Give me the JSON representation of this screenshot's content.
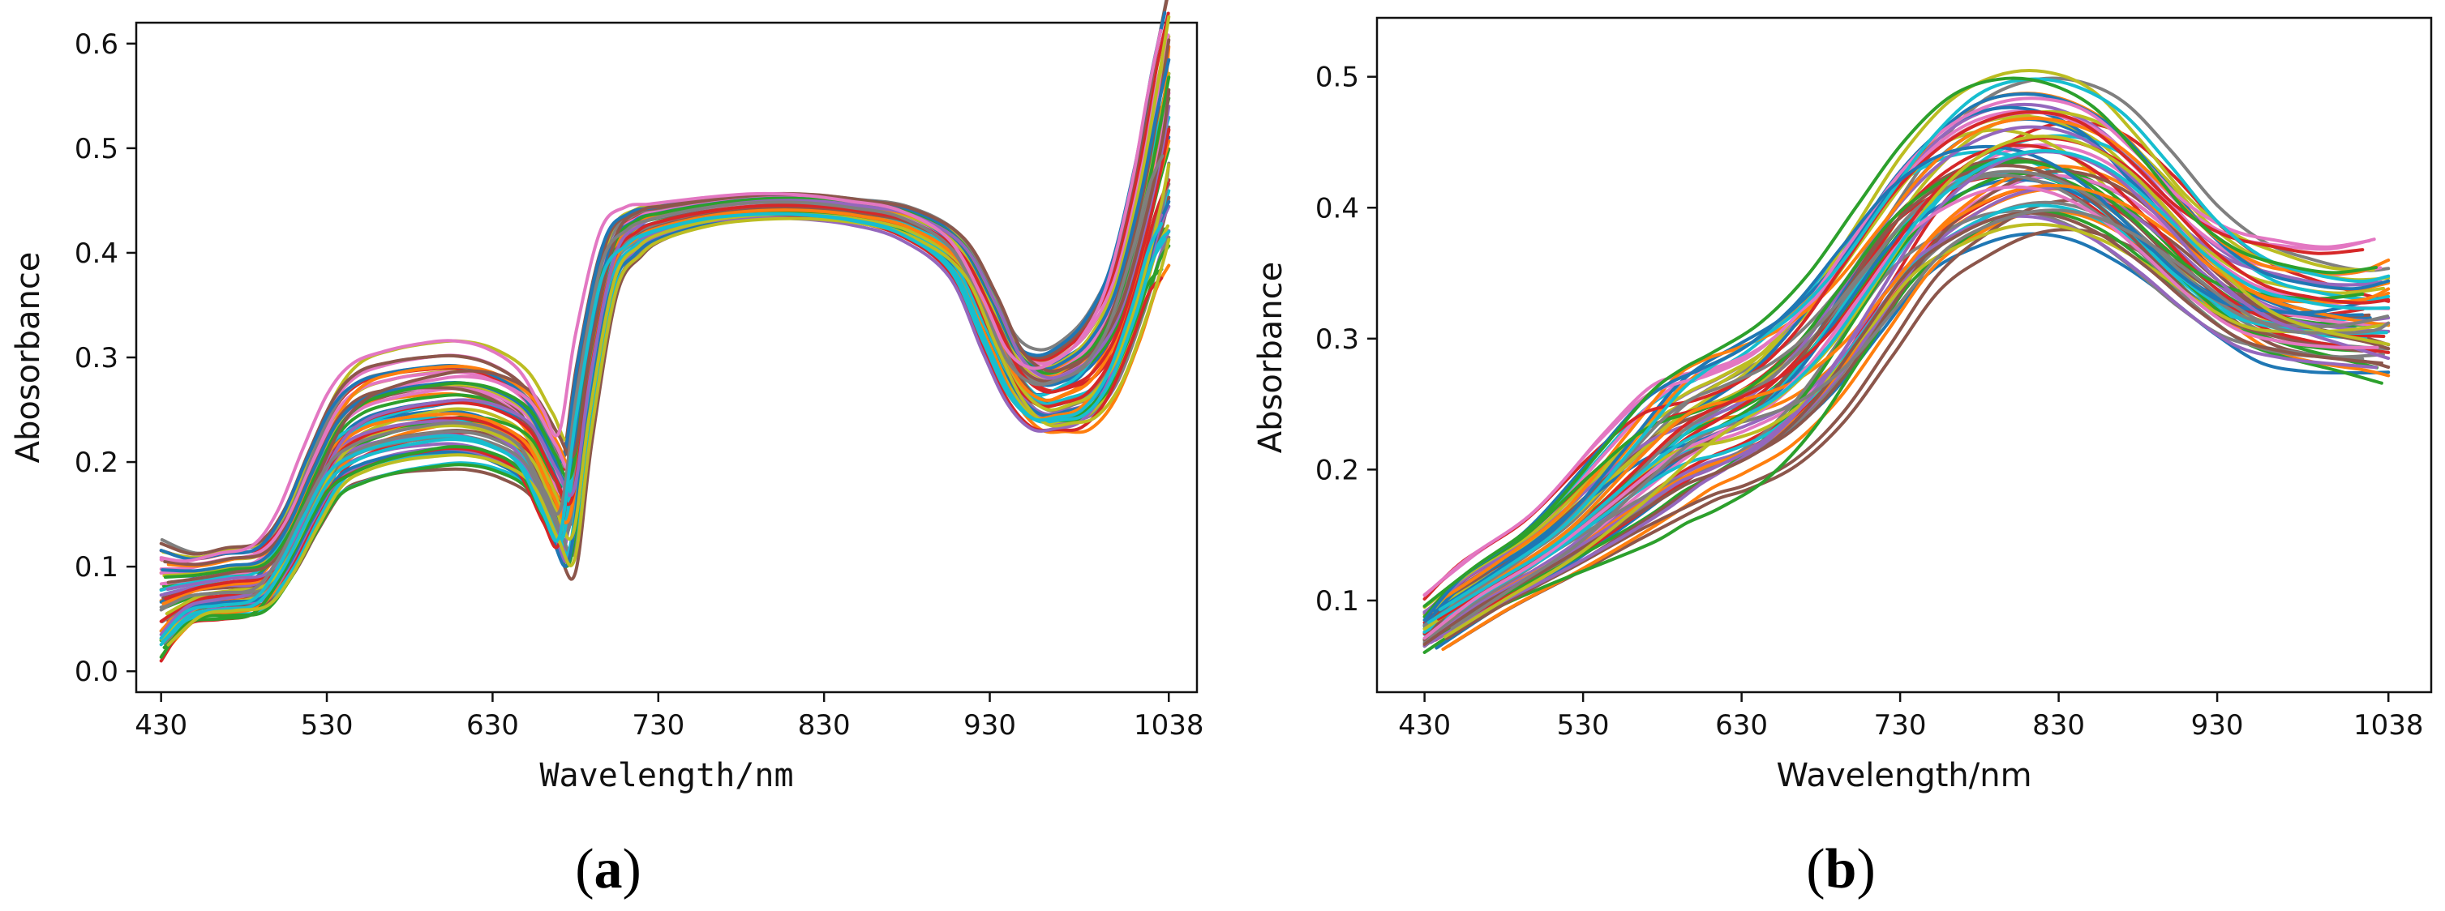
{
  "palette": [
    "#1f77b4",
    "#ff7f0e",
    "#2ca02c",
    "#d62728",
    "#9467bd",
    "#8c564b",
    "#e377c2",
    "#7f7f7f",
    "#bcbd22",
    "#17becf"
  ],
  "chart_data": [
    {
      "type": "line",
      "panel": "a",
      "panel_label": "a",
      "xlabel": "Wavelength/nm",
      "ylabel": "Abosorbance",
      "xlim": [
        415,
        1055
      ],
      "ylim": [
        -0.02,
        0.62
      ],
      "xticks": [
        430,
        530,
        630,
        730,
        830,
        930,
        1038
      ],
      "xtick_labels": [
        "430",
        "530",
        "630",
        "730",
        "830",
        "930",
        "1038"
      ],
      "yticks": [
        0.0,
        0.1,
        0.2,
        0.3,
        0.4,
        0.5,
        0.6
      ],
      "ytick_labels": [
        "0.0",
        "0.1",
        "0.2",
        "0.3",
        "0.4",
        "0.5",
        "0.6"
      ],
      "series_count": 60,
      "template": {
        "x": [
          430,
          450,
          470,
          490,
          505,
          520,
          535,
          550,
          570,
          590,
          610,
          630,
          650,
          665,
          675,
          685,
          700,
          715,
          730,
          760,
          790,
          820,
          850,
          880,
          910,
          930,
          945,
          960,
          975,
          990,
          1005,
          1020,
          1030,
          1038
        ],
        "mean": [
          0.07,
          0.08,
          0.085,
          0.09,
          0.12,
          0.17,
          0.215,
          0.235,
          0.245,
          0.25,
          0.252,
          0.245,
          0.225,
          0.18,
          0.16,
          0.27,
          0.39,
          0.42,
          0.43,
          0.44,
          0.445,
          0.445,
          0.44,
          0.43,
          0.4,
          0.34,
          0.29,
          0.27,
          0.275,
          0.29,
          0.33,
          0.41,
          0.48,
          0.52
        ],
        "spread": [
          0.05,
          0.03,
          0.03,
          0.03,
          0.03,
          0.035,
          0.04,
          0.045,
          0.045,
          0.045,
          0.045,
          0.045,
          0.045,
          0.05,
          0.05,
          0.04,
          0.025,
          0.02,
          0.015,
          0.012,
          0.012,
          0.012,
          0.012,
          0.015,
          0.02,
          0.03,
          0.03,
          0.035,
          0.04,
          0.05,
          0.06,
          0.08,
          0.1,
          0.12
        ]
      }
    },
    {
      "type": "line",
      "panel": "b",
      "panel_label": "b",
      "xlabel": "Wavelength/nm",
      "ylabel": "Absorbance",
      "xlim": [
        400,
        1065
      ],
      "ylim": [
        0.03,
        0.545
      ],
      "xticks": [
        430,
        530,
        630,
        730,
        830,
        930,
        1038
      ],
      "xtick_labels": [
        "430",
        "530",
        "630",
        "730",
        "830",
        "930",
        "1038"
      ],
      "yticks": [
        0.1,
        0.2,
        0.3,
        0.4,
        0.5
      ],
      "ytick_labels": [
        "0.1",
        "0.2",
        "0.3",
        "0.4",
        "0.5"
      ],
      "series_count": 60,
      "template": {
        "x": [
          430,
          470,
          510,
          550,
          580,
          600,
          620,
          650,
          680,
          710,
          740,
          770,
          800,
          830,
          860,
          890,
          920,
          950,
          980,
          1010,
          1038
        ],
        "mean": [
          0.08,
          0.11,
          0.14,
          0.18,
          0.21,
          0.225,
          0.235,
          0.255,
          0.29,
          0.34,
          0.39,
          0.42,
          0.435,
          0.435,
          0.42,
          0.39,
          0.355,
          0.33,
          0.32,
          0.315,
          0.315
        ],
        "spread": [
          0.02,
          0.02,
          0.025,
          0.04,
          0.05,
          0.05,
          0.05,
          0.05,
          0.05,
          0.05,
          0.05,
          0.055,
          0.055,
          0.055,
          0.055,
          0.05,
          0.045,
          0.045,
          0.045,
          0.045,
          0.05
        ]
      }
    }
  ]
}
